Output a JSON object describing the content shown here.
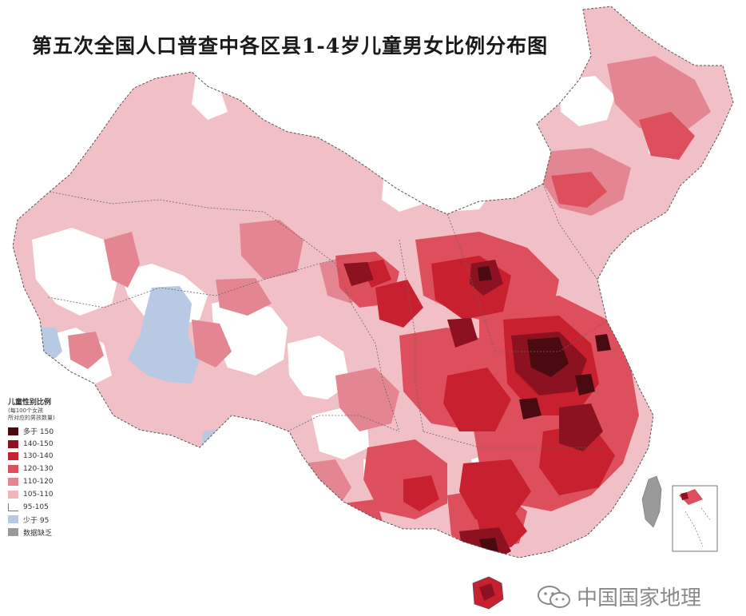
{
  "title": "第五次全国人口普查中各区县1-4岁儿童男女比例分布图",
  "legend": {
    "title": "儿童性别比例",
    "subtitle1": "(每100个女孩",
    "subtitle2": "所对应的男孩数量)",
    "items": [
      {
        "label": "多于 150",
        "color": "#4a0a12"
      },
      {
        "label": "140-150",
        "color": "#8c1222"
      },
      {
        "label": "130-140",
        "color": "#c8202e"
      },
      {
        "label": "120-130",
        "color": "#dd4f5d"
      },
      {
        "label": "110-120",
        "color": "#e48592"
      },
      {
        "label": "105-110",
        "color": "#f0b6be"
      },
      {
        "label": "95-105",
        "color": "#ffffff"
      },
      {
        "label": "少于 95",
        "color": "#b7c9e3"
      },
      {
        "label": "数据缺乏",
        "color": "#9a9a9a"
      }
    ]
  },
  "watermark": {
    "text": "中国国家地理",
    "icon": "wechat-logo-icon"
  }
}
